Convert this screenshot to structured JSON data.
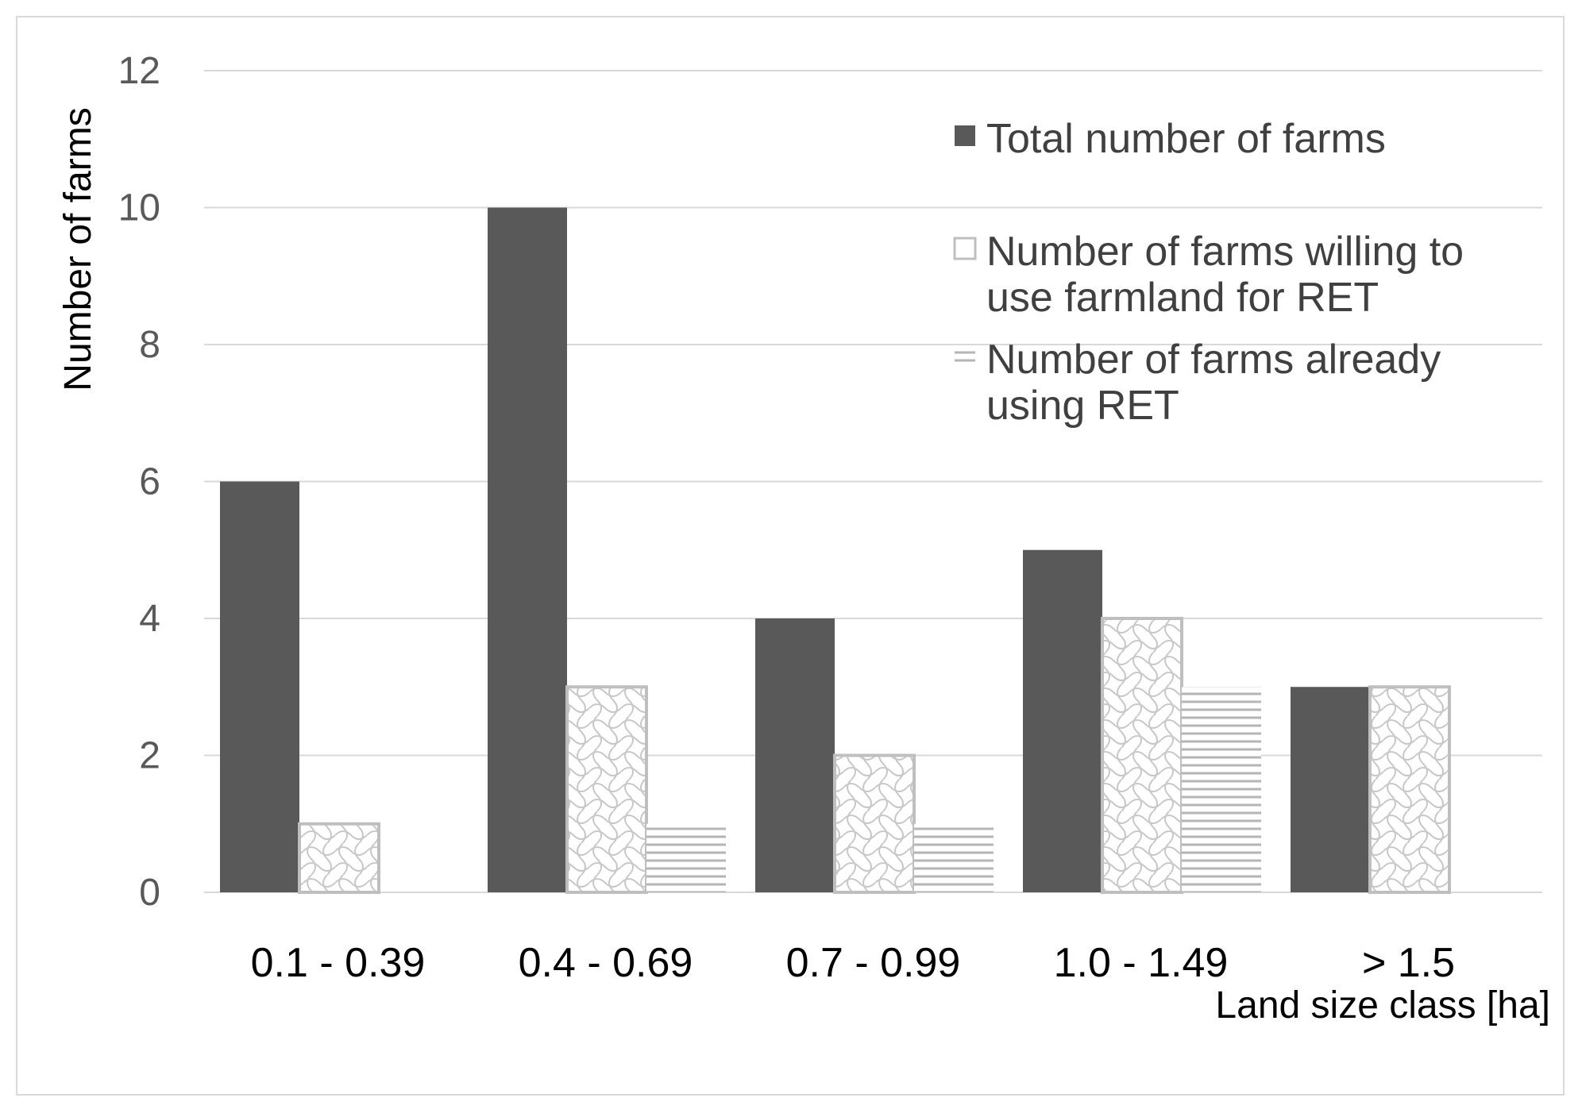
{
  "chart_data": {
    "type": "bar",
    "categories": [
      "0.1 - 0.39",
      "0.4 - 0.69",
      "0.7 - 0.99",
      "1.0 - 1.49",
      "> 1.5"
    ],
    "series": [
      {
        "name": "Total number of farms",
        "values": [
          6,
          10,
          4,
          5,
          3
        ],
        "color": "#595959",
        "pattern": "solid"
      },
      {
        "name": "Number of farms willing to use farmland for RET",
        "values": [
          1,
          3,
          2,
          4,
          3
        ],
        "color": "#bfbfbf",
        "pattern": "wave"
      },
      {
        "name": "Number of farms already using RET",
        "values": [
          0,
          1,
          1,
          3,
          0
        ],
        "color": "#bfbfbf",
        "pattern": "horizontal-lines"
      }
    ],
    "legend_lines": [
      [
        "Total number of farms"
      ],
      [
        "Number of farms willing to",
        "use farmland for RET"
      ],
      [
        "Number of farms already",
        "using RET"
      ]
    ],
    "xlabel": "Land size class [ha]",
    "ylabel": "Number of farms",
    "ylim": [
      0,
      12
    ],
    "yticks": [
      0,
      2,
      4,
      6,
      8,
      10,
      12
    ],
    "grid": true,
    "legend_position": "top-right"
  }
}
